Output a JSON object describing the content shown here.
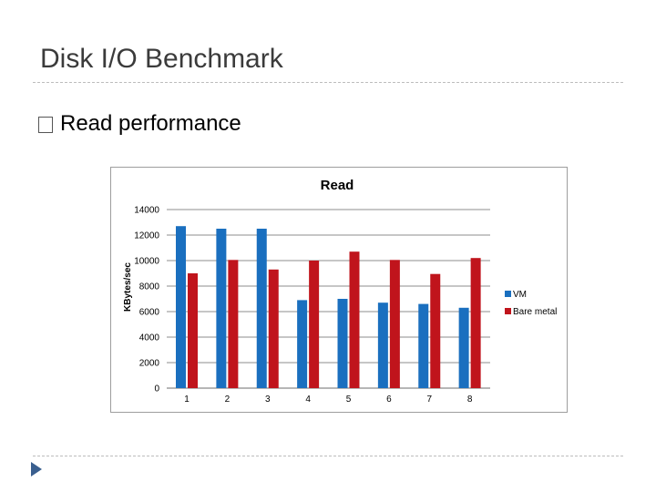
{
  "slide": {
    "title": "Disk I/O Benchmark",
    "bullet": "Read performance"
  },
  "colors": {
    "vm": "#1a6fbf",
    "bare_metal": "#c0141c",
    "gridline": "#8c8c8c",
    "nav_arrow": "#3a5f8f"
  },
  "chart_data": {
    "type": "bar",
    "title": "Read",
    "xlabel": "",
    "ylabel": "KBytes/sec",
    "categories": [
      "1",
      "2",
      "3",
      "4",
      "5",
      "6",
      "7",
      "8"
    ],
    "ylim": [
      0,
      14000
    ],
    "yticks": [
      0,
      2000,
      4000,
      6000,
      8000,
      10000,
      12000,
      14000
    ],
    "grid": true,
    "legend_position": "right",
    "series": [
      {
        "name": "VM",
        "values": [
          12700,
          12500,
          12500,
          6900,
          7000,
          6700,
          6600,
          6300
        ]
      },
      {
        "name": "Bare metal",
        "values": [
          9000,
          10050,
          9300,
          10000,
          10700,
          10050,
          8950,
          10200
        ]
      }
    ]
  }
}
